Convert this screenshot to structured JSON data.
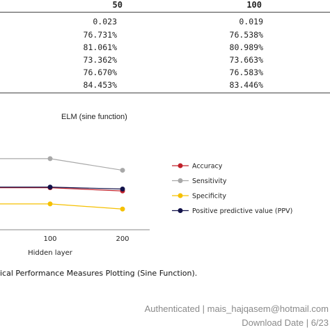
{
  "table": {
    "columns": [
      "50",
      "100"
    ],
    "rows": [
      [
        "0.023",
        "0.019"
      ],
      [
        "76.731%",
        "76.538%"
      ],
      [
        "81.061%",
        "80.989%"
      ],
      [
        "73.362%",
        "73.663%"
      ],
      [
        "76.670%",
        "76.583%"
      ],
      [
        "84.453%",
        "83.446%"
      ]
    ]
  },
  "chart_data": {
    "type": "line",
    "title": "ELM (sine function)",
    "xlabel": "Hidden layer",
    "ylabel": "",
    "categories": [
      "100",
      "200"
    ],
    "series": [
      {
        "name": "Accuracy",
        "color": "#c0202a",
        "values": [
          76.5,
          76.0
        ]
      },
      {
        "name": "Sensitivity",
        "color": "#a8a8a8",
        "values": [
          81.0,
          79.2
        ]
      },
      {
        "name": "Specificity",
        "color": "#f5c000",
        "values": [
          74.0,
          73.2
        ]
      },
      {
        "name": "Positive predictive value (PPV)",
        "color": "#12124a",
        "values": [
          76.6,
          76.3
        ]
      }
    ],
    "ylim": [
      70,
      84
    ],
    "legend_position": "right"
  },
  "caption": "ical Performance Measures Plotting (Sine Function).",
  "footer": {
    "line1": "Authenticated | mais_hajqasem@hotmail.com",
    "line2": "Download Date | 6/23"
  }
}
